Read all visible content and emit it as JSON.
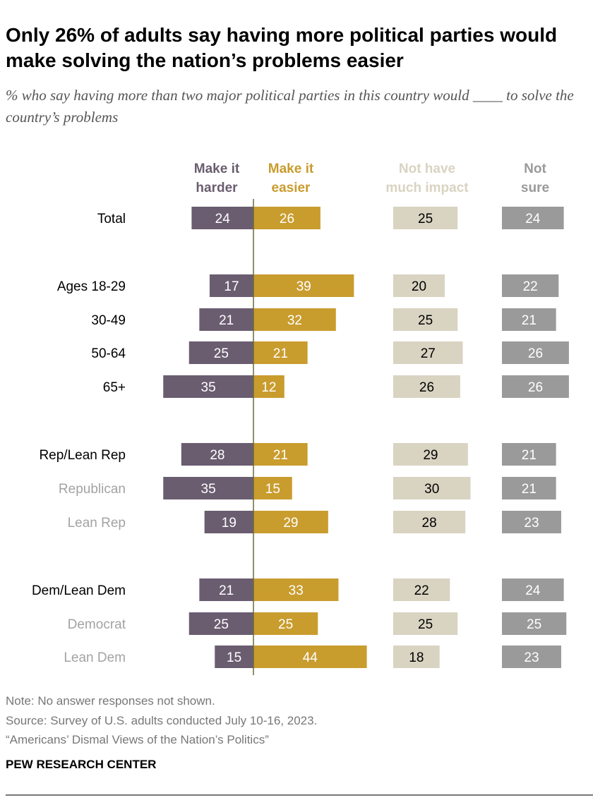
{
  "title": "Only 26% of adults say having more political parties would make solving the nation’s problems easier",
  "subtitle": "% who say having more than two major political parties in this country would ____ to solve the country’s problems",
  "chart_data": {
    "type": "bar",
    "title": "Only 26% of adults say having more political parties would make solving the nation’s problems easier",
    "categories": [
      "Total",
      "Ages 18-29",
      "30-49",
      "50-64",
      "65+",
      "Rep/Lean Rep",
      "Republican",
      "Lean Rep",
      "Dem/Lean Dem",
      "Democrat",
      "Lean Dem"
    ],
    "subgroup_categories": [
      "Republican",
      "Lean Rep",
      "Democrat",
      "Lean Dem"
    ],
    "series": [
      {
        "name": "Make it harder",
        "color": "#6a5d70",
        "values": [
          24,
          17,
          21,
          25,
          35,
          28,
          35,
          19,
          21,
          25,
          15
        ]
      },
      {
        "name": "Make it easier",
        "color": "#c99c2e",
        "values": [
          26,
          39,
          32,
          21,
          12,
          21,
          15,
          29,
          33,
          25,
          44
        ]
      },
      {
        "name": "Not have much impact",
        "color": "#d9d3c2",
        "values": [
          25,
          20,
          25,
          27,
          26,
          29,
          30,
          28,
          22,
          25,
          18
        ]
      },
      {
        "name": "Not sure",
        "color": "#9a9a9a",
        "values": [
          24,
          22,
          21,
          26,
          26,
          21,
          21,
          23,
          24,
          25,
          23
        ]
      }
    ],
    "series_label_lines": [
      [
        "Make it",
        "harder"
      ],
      [
        "Make it",
        "easier"
      ],
      [
        "Not have",
        "much impact"
      ],
      [
        "Not",
        "sure"
      ]
    ]
  },
  "footer": {
    "note": "Note: No answer responses not shown.",
    "source": "Source: Survey of U.S. adults conducted July 10-16, 2023.",
    "report": "“Americans’ Dismal Views of the Nation’s Politics”",
    "brand": "PEW RESEARCH CENTER"
  }
}
